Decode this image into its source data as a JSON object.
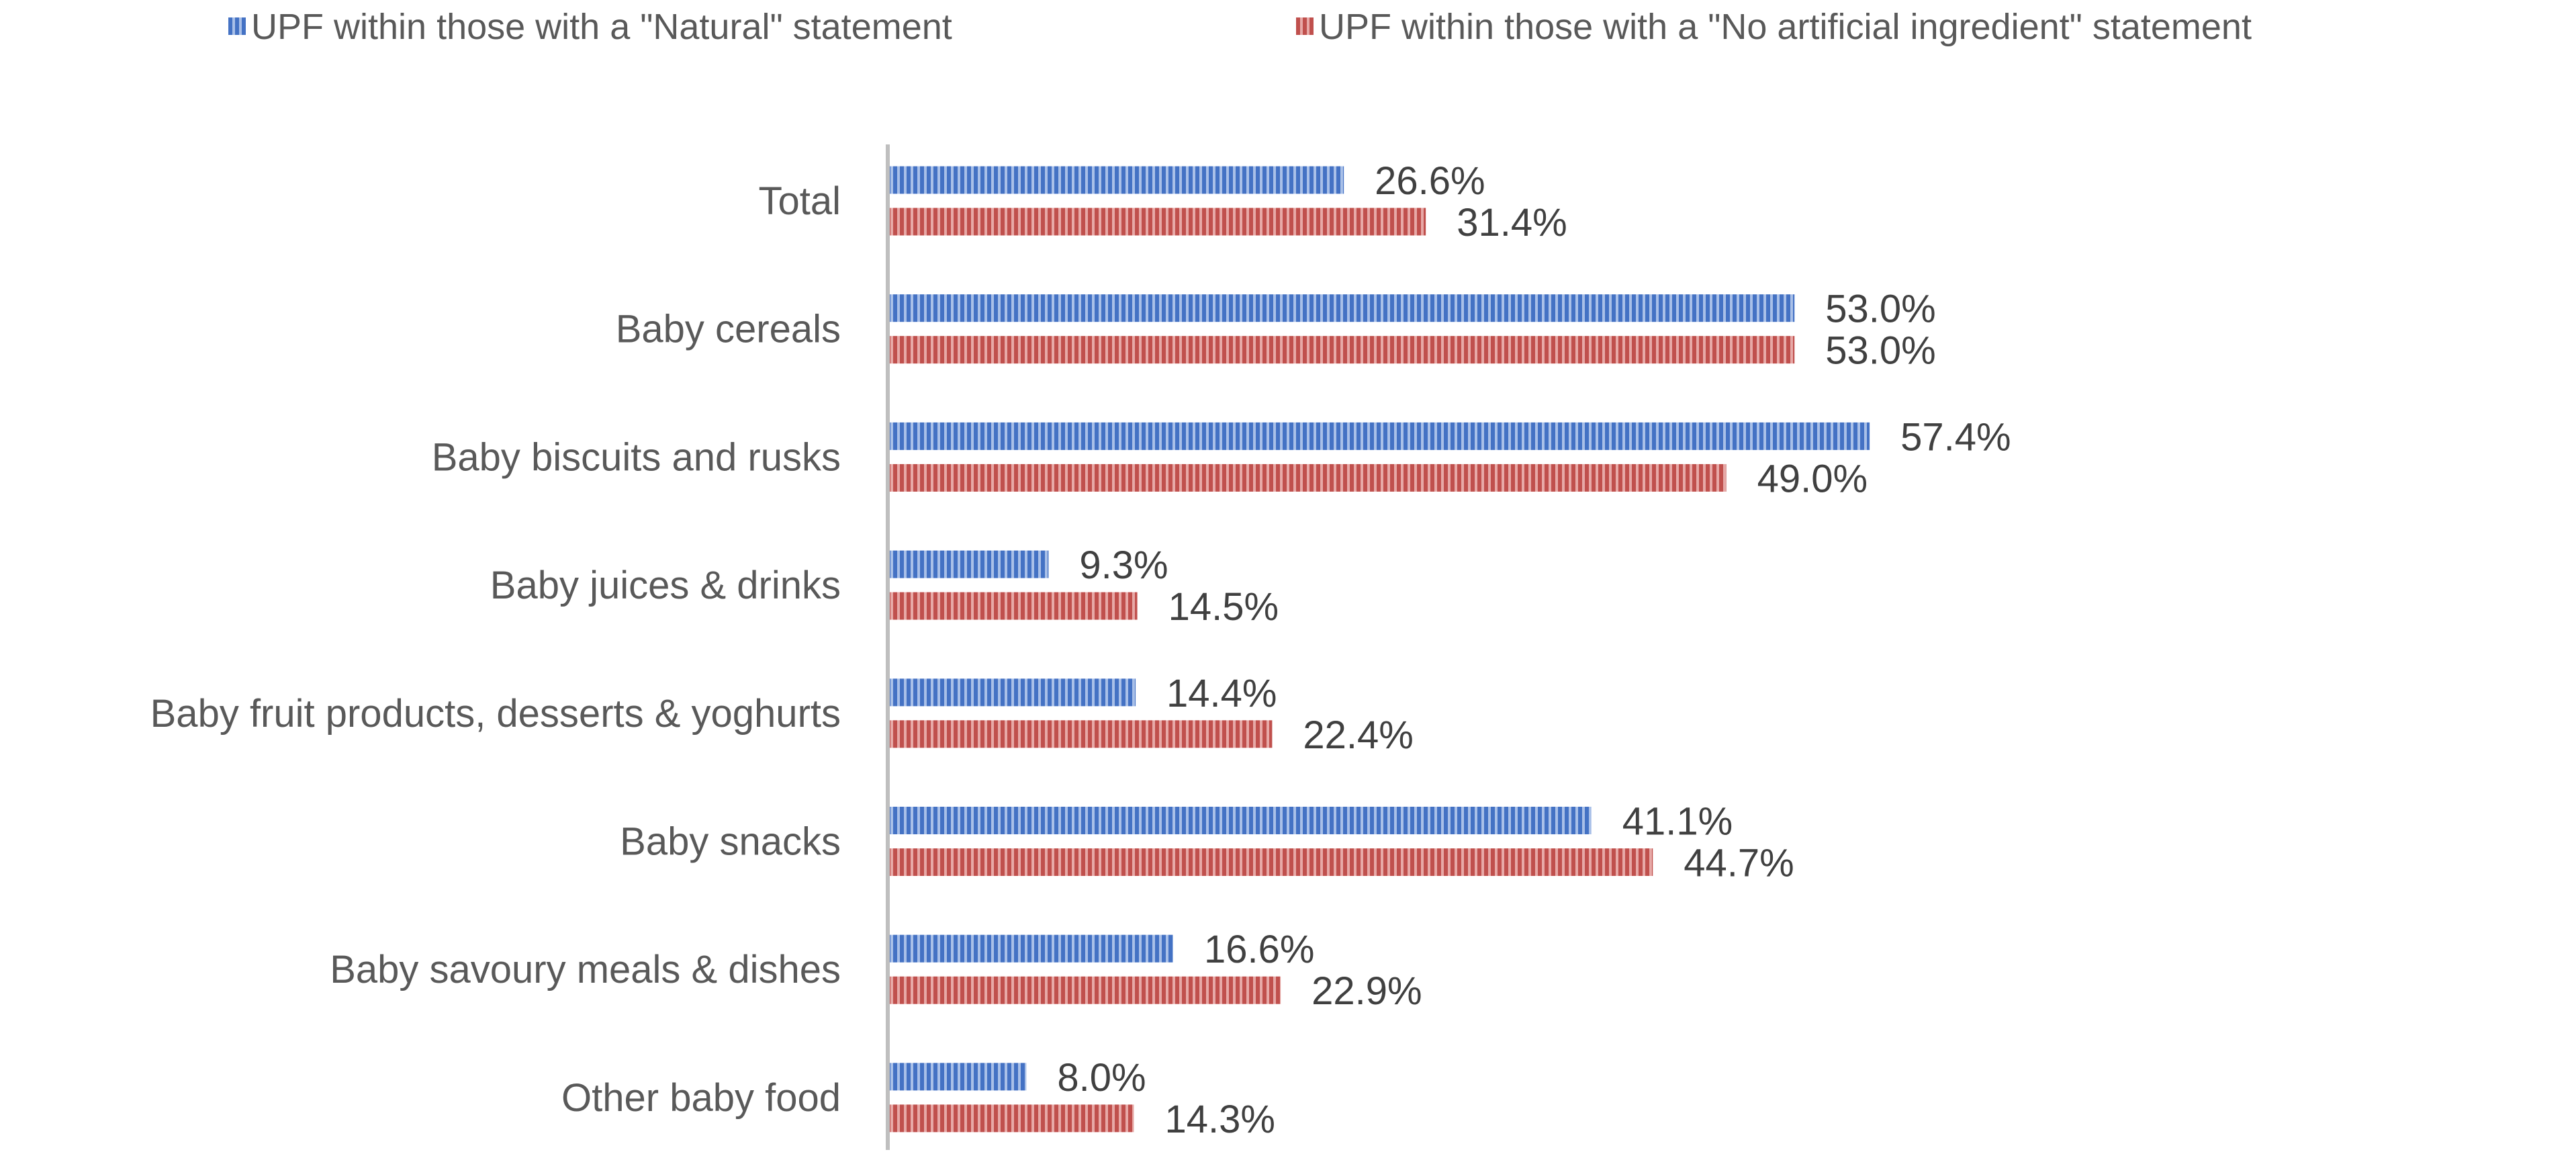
{
  "chart_data": {
    "type": "bar",
    "orientation": "horizontal",
    "title": "",
    "xlabel": "",
    "ylabel": "",
    "xlim": [
      0,
      70
    ],
    "grid": false,
    "legend_position": "top",
    "categories": [
      "Total",
      "Baby cereals",
      "Baby biscuits and rusks",
      "Baby juices & drinks",
      "Baby fruit products, desserts & yoghurts",
      "Baby snacks",
      "Baby savoury meals & dishes",
      "Other baby food"
    ],
    "series": [
      {
        "name": "UPF within those with a \"Natural\" statement",
        "color": "#4472C4",
        "values": [
          26.6,
          53.0,
          57.4,
          9.3,
          14.4,
          41.1,
          16.6,
          8.0
        ],
        "labels": [
          "26.6%",
          "53.0%",
          "57.4%",
          "9.3%",
          "14.4%",
          "41.1%",
          "16.6%",
          "8.0%"
        ]
      },
      {
        "name": "UPF within those with a \"No artificial ingredient\" statement",
        "color": "#C0504D",
        "values": [
          31.4,
          53.0,
          49.0,
          14.5,
          22.4,
          44.7,
          22.9,
          14.3
        ],
        "labels": [
          "31.4%",
          "53.0%",
          "49.0%",
          "14.5%",
          "22.4%",
          "44.7%",
          "22.9%",
          "14.3%"
        ]
      }
    ]
  }
}
